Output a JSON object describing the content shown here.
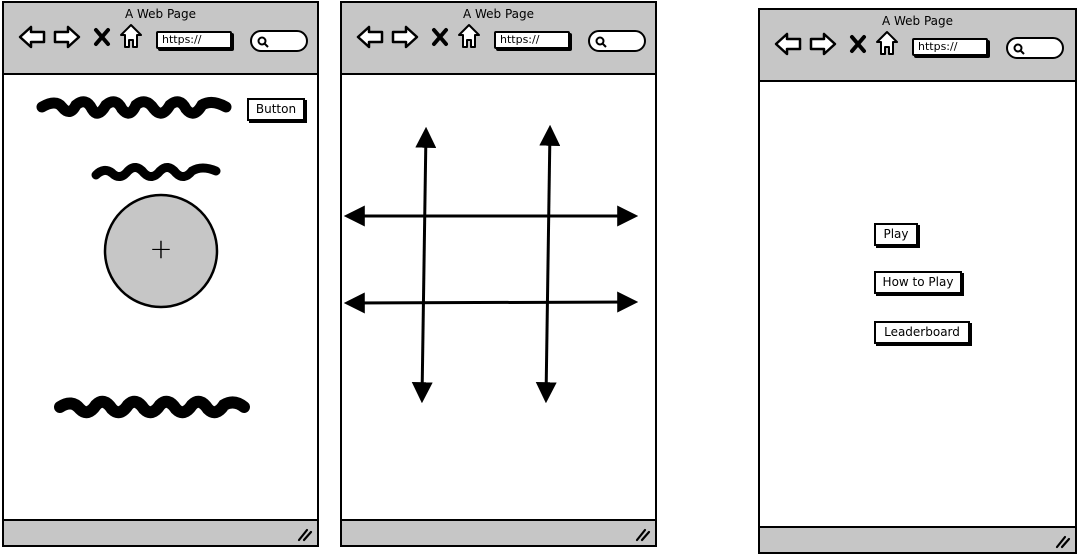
{
  "browser": {
    "title": "A Web Page",
    "url": "https://"
  },
  "screen1": {
    "button_label": "Button",
    "image_placeholder_symbol": "+"
  },
  "screen3": {
    "menu": {
      "play": "Play",
      "how_to_play": "How to Play",
      "leaderboard": "Leaderboard"
    }
  },
  "colors": {
    "chrome": "#c6c6c6",
    "ink": "#000000",
    "page": "#ffffff"
  },
  "icons": [
    "back-arrow-icon",
    "forward-arrow-icon",
    "close-icon",
    "home-icon",
    "search-icon",
    "resize-grip-icon"
  ]
}
